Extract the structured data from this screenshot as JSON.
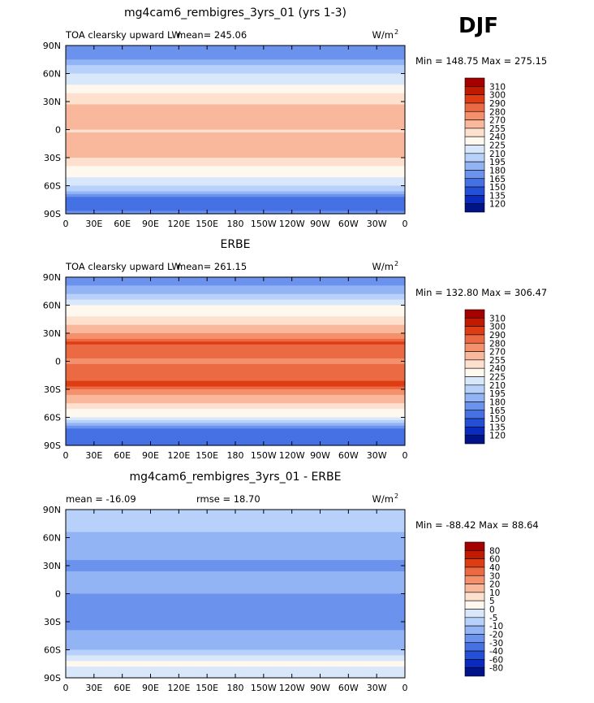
{
  "season": "DJF",
  "chart_data": [
    {
      "type": "heatmap",
      "title": "mg4cam6_rembigres_3yrs_01 (yrs 1-3)",
      "left_label": "TOA clearsky upward LW",
      "stat_label": "mean= 245.06",
      "units": "W/m",
      "units_sup": "2",
      "minmax": "Min = 148.75 Max = 275.15",
      "xticks": [
        "0",
        "30E",
        "60E",
        "90E",
        "120E",
        "150E",
        "180",
        "150W",
        "120W",
        "90W",
        "60W",
        "30W",
        "0"
      ],
      "yticks": [
        "90N",
        "60N",
        "30N",
        "0",
        "30S",
        "60S",
        "90S"
      ],
      "xlim": [
        0,
        360
      ],
      "ylim": [
        -90,
        90
      ],
      "zonal_profile": [
        [
          -90,
          170
        ],
        [
          -75,
          150
        ],
        [
          -60,
          215
        ],
        [
          -40,
          240
        ],
        [
          -25,
          265
        ],
        [
          -10,
          258
        ],
        [
          0,
          254
        ],
        [
          10,
          262
        ],
        [
          20,
          270
        ],
        [
          30,
          252
        ],
        [
          45,
          230
        ],
        [
          60,
          212
        ],
        [
          75,
          178
        ],
        [
          90,
          165
        ]
      ],
      "colorbar": {
        "labels": [
          "310",
          "300",
          "290",
          "280",
          "270",
          "255",
          "240",
          "225",
          "210",
          "195",
          "180",
          "165",
          "150",
          "135",
          "120"
        ],
        "colors": [
          "#a50000",
          "#c21a00",
          "#de3d14",
          "#ec6a43",
          "#f4906c",
          "#f9b79b",
          "#fde0ce",
          "#fff8ef",
          "#d9e7fb",
          "#b7d1fa",
          "#92b4f4",
          "#6b92ec",
          "#4571e4",
          "#2450d8",
          "#0a2bc0",
          "#001388"
        ]
      }
    },
    {
      "type": "heatmap",
      "title": "ERBE",
      "left_label": "TOA clearsky upward LW",
      "stat_label": "mean= 261.15",
      "units": "W/m",
      "units_sup": "2",
      "minmax": "Min = 132.80 Max = 306.47",
      "xticks": [
        "0",
        "30E",
        "60E",
        "90E",
        "120E",
        "150E",
        "180",
        "150W",
        "120W",
        "90W",
        "60W",
        "30W",
        "0"
      ],
      "yticks": [
        "90N",
        "60N",
        "30N",
        "0",
        "30S",
        "60S",
        "90S"
      ],
      "xlim": [
        0,
        360
      ],
      "ylim": [
        -90,
        90
      ],
      "zonal_profile": [
        [
          -90,
          160
        ],
        [
          -75,
          150
        ],
        [
          -60,
          225
        ],
        [
          -40,
          262
        ],
        [
          -25,
          292
        ],
        [
          -10,
          286
        ],
        [
          0,
          278
        ],
        [
          10,
          284
        ],
        [
          20,
          292
        ],
        [
          30,
          270
        ],
        [
          45,
          245
        ],
        [
          60,
          225
        ],
        [
          75,
          185
        ],
        [
          90,
          170
        ]
      ],
      "colorbar": {
        "labels": [
          "310",
          "300",
          "290",
          "280",
          "270",
          "255",
          "240",
          "225",
          "210",
          "195",
          "180",
          "165",
          "150",
          "135",
          "120"
        ],
        "colors": [
          "#a50000",
          "#c21a00",
          "#de3d14",
          "#ec6a43",
          "#f4906c",
          "#f9b79b",
          "#fde0ce",
          "#fff8ef",
          "#d9e7fb",
          "#b7d1fa",
          "#92b4f4",
          "#6b92ec",
          "#4571e4",
          "#2450d8",
          "#0a2bc0",
          "#001388"
        ]
      }
    },
    {
      "type": "heatmap",
      "title": "mg4cam6_rembigres_3yrs_01 - ERBE",
      "left_label": "mean = -16.09",
      "stat_label": "rmse =   18.70",
      "units": "W/m",
      "units_sup": "2",
      "minmax": "Min = -88.42 Max =  88.64",
      "xticks": [
        "0",
        "30E",
        "60E",
        "90E",
        "120E",
        "150E",
        "180",
        "150W",
        "120W",
        "90W",
        "60W",
        "30W",
        "0"
      ],
      "yticks": [
        "90N",
        "60N",
        "30N",
        "0",
        "30S",
        "60S",
        "90S"
      ],
      "xlim": [
        0,
        360
      ],
      "ylim": [
        -90,
        90
      ],
      "zonal_profile": [
        [
          -90,
          -5
        ],
        [
          -75,
          2
        ],
        [
          -60,
          -10
        ],
        [
          -40,
          -20
        ],
        [
          -25,
          -25
        ],
        [
          -10,
          -22
        ],
        [
          0,
          -20
        ],
        [
          10,
          -20
        ],
        [
          20,
          -18
        ],
        [
          30,
          -22
        ],
        [
          45,
          -18
        ],
        [
          60,
          -12
        ],
        [
          75,
          -6
        ],
        [
          90,
          -5
        ]
      ],
      "colorbar": {
        "labels": [
          "80",
          "60",
          "40",
          "30",
          "20",
          "10",
          "5",
          "0",
          "-5",
          "-10",
          "-20",
          "-30",
          "-40",
          "-60",
          "-80"
        ],
        "colors": [
          "#a50000",
          "#c21a00",
          "#de3d14",
          "#ec6a43",
          "#f4906c",
          "#f9b79b",
          "#fde0ce",
          "#fff8ef",
          "#d9e7fb",
          "#b7d1fa",
          "#92b4f4",
          "#6b92ec",
          "#4571e4",
          "#2450d8",
          "#0a2bc0",
          "#001388"
        ]
      }
    }
  ]
}
